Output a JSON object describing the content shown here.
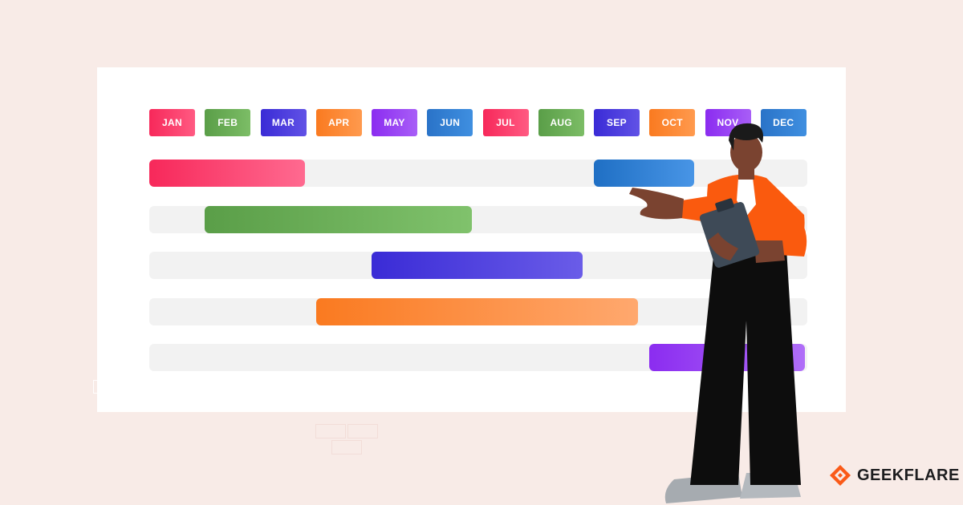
{
  "months": [
    {
      "label": "JAN",
      "from": "#f7285a",
      "to": "#ff5a82"
    },
    {
      "label": "FEB",
      "from": "#5a9e48",
      "to": "#7cbd66"
    },
    {
      "label": "MAR",
      "from": "#3a2bd6",
      "to": "#6152e6"
    },
    {
      "label": "APR",
      "from": "#fa7a20",
      "to": "#ff9a4e"
    },
    {
      "label": "MAY",
      "from": "#8b2cf0",
      "to": "#a85ef7"
    },
    {
      "label": "JUN",
      "from": "#2a73c8",
      "to": "#3f8fe0"
    },
    {
      "label": "JUL",
      "from": "#f7285a",
      "to": "#ff5a82"
    },
    {
      "label": "AUG",
      "from": "#5a9e48",
      "to": "#7cbd66"
    },
    {
      "label": "SEP",
      "from": "#3a2bd6",
      "to": "#6152e6"
    },
    {
      "label": "OCT",
      "from": "#fa7a20",
      "to": "#ff9a4e"
    },
    {
      "label": "NOV",
      "from": "#8b2cf0",
      "to": "#a85ef7"
    },
    {
      "label": "DEC",
      "from": "#2a73c8",
      "to": "#3f8fe0"
    }
  ],
  "tasks": [
    [
      {
        "start": 1.0,
        "end": 3.8,
        "from": "#f7285a",
        "to": "#ff6a90"
      },
      {
        "start": 9.0,
        "end": 10.8,
        "from": "#1f6fc4",
        "to": "#4895e6"
      }
    ],
    [
      {
        "start": 2.0,
        "end": 6.8,
        "from": "#5a9e48",
        "to": "#80c26c"
      }
    ],
    [
      {
        "start": 5.0,
        "end": 8.8,
        "from": "#3a2bd6",
        "to": "#6a5ce8"
      }
    ],
    [
      {
        "start": 4.0,
        "end": 9.8,
        "from": "#fa7a20",
        "to": "#ffa86e"
      }
    ],
    [
      {
        "start": 10.0,
        "end": 12.8,
        "from": "#8b2cf0",
        "to": "#b06ef8"
      }
    ]
  ],
  "brand": {
    "name": "GEEKFLARE",
    "color": "#fa5a18"
  }
}
